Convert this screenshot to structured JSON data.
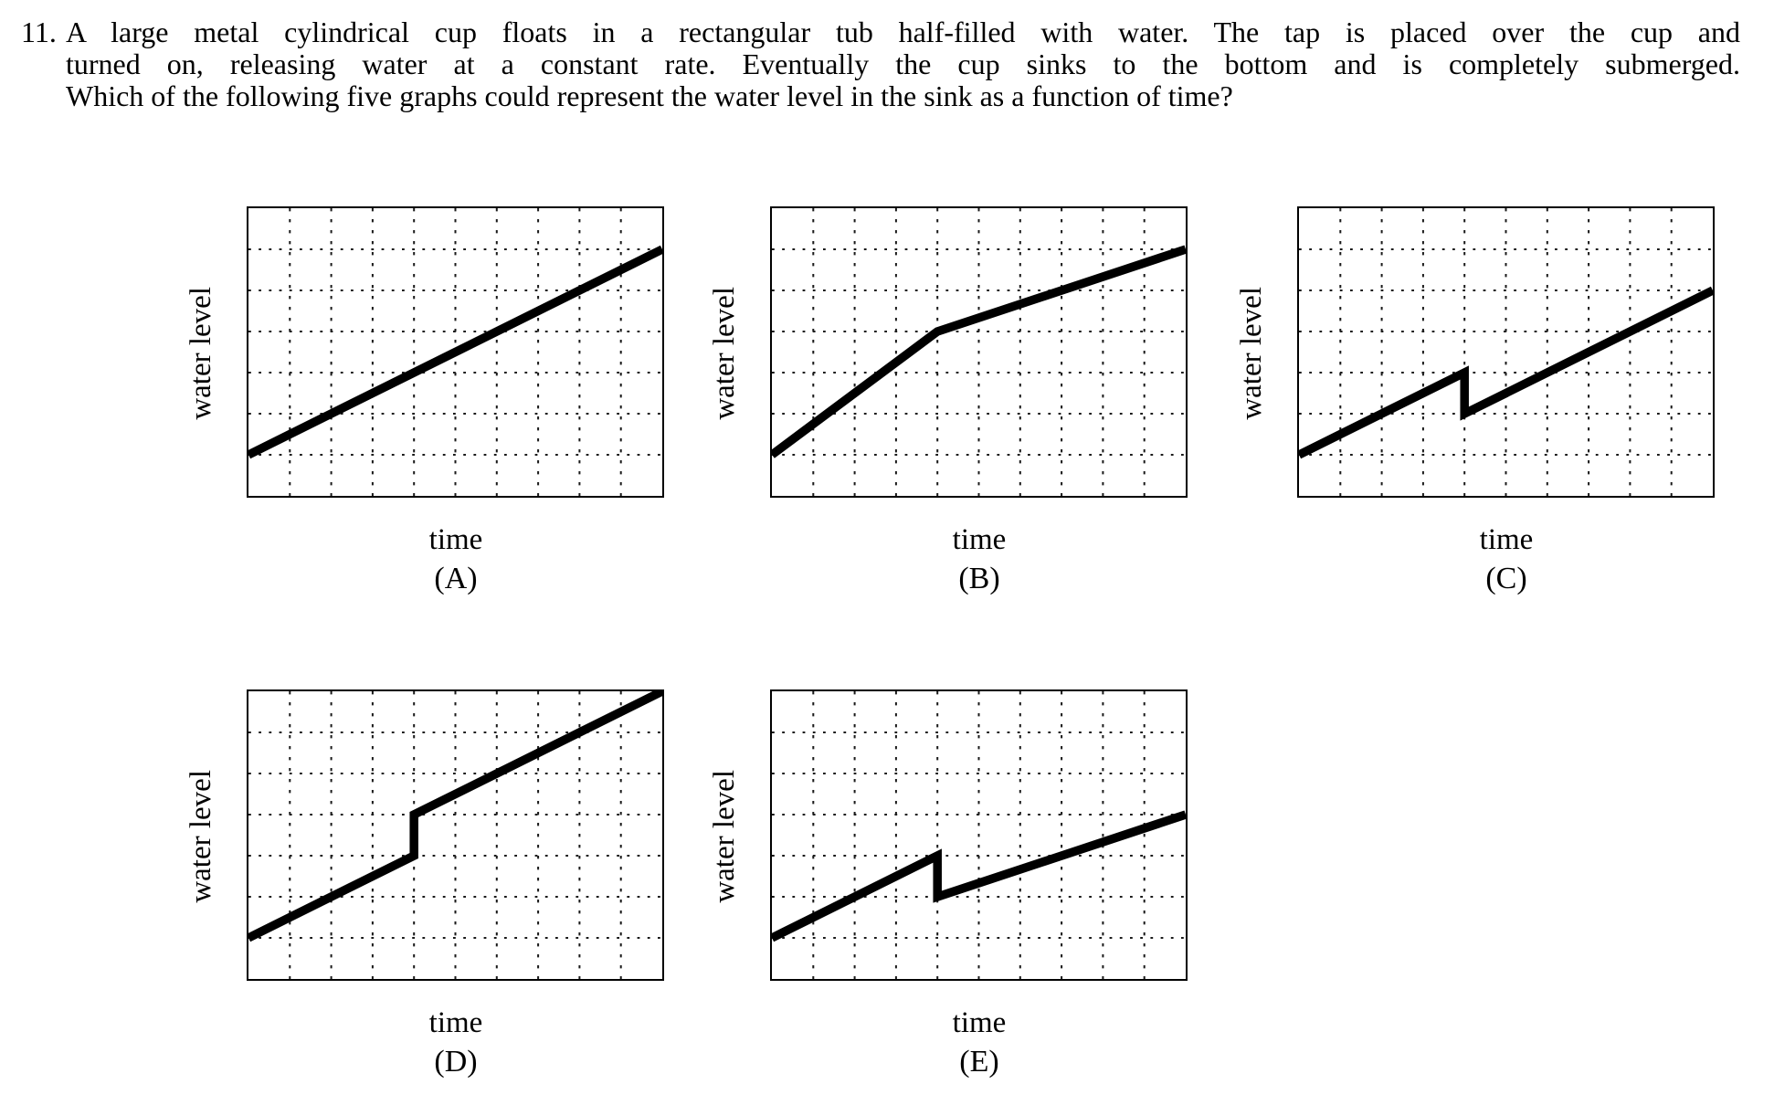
{
  "question": {
    "number": "11.",
    "lines": [
      "A large metal cylindrical cup floats in a rectangular tub half-filled with water. The tap is placed over the cup and",
      "turned on, releasing water at a constant rate. Eventually the cup sinks to the bottom and is completely submerged.",
      "Which of the following five graphs could represent the water level in the sink as a function of time?"
    ]
  },
  "colors": {
    "background": "#ffffff",
    "text": "#000000",
    "line": "#000000",
    "grid": "#1a1a1a",
    "frame": "#000000"
  },
  "chart_data": [
    {
      "type": "line",
      "label": "(A)",
      "title": "",
      "xlabel": "time",
      "ylabel": "water level",
      "xlim": [
        0,
        10
      ],
      "ylim": [
        0,
        7
      ],
      "grid": true,
      "grid_divisions_x": 10,
      "grid_divisions_y": 7,
      "tick_labels": "none (qualitative axes)",
      "points": [
        [
          0,
          1
        ],
        [
          10,
          6
        ]
      ],
      "description": "single straight line rising at a constant rate from lower-left to upper-right"
    },
    {
      "type": "line",
      "label": "(B)",
      "title": "",
      "xlabel": "time",
      "ylabel": "water level",
      "xlim": [
        0,
        10
      ],
      "ylim": [
        0,
        7
      ],
      "grid": true,
      "grid_divisions_x": 10,
      "grid_divisions_y": 7,
      "tick_labels": "none (qualitative axes)",
      "points": [
        [
          0,
          1
        ],
        [
          4,
          4
        ],
        [
          10,
          6
        ]
      ],
      "description": "steep linear rise, then a kink to a shallower linear rise (no discontinuity)"
    },
    {
      "type": "line",
      "label": "(C)",
      "title": "",
      "xlabel": "time",
      "ylabel": "water level",
      "xlim": [
        0,
        10
      ],
      "ylim": [
        0,
        7
      ],
      "grid": true,
      "grid_divisions_x": 10,
      "grid_divisions_y": 7,
      "tick_labels": "none (qualitative axes)",
      "points": [
        [
          0,
          1
        ],
        [
          4,
          3
        ],
        [
          4,
          2
        ],
        [
          10,
          5
        ]
      ],
      "description": "linear rise, sudden vertical drop of one grid unit, then linear rise at the same rate"
    },
    {
      "type": "line",
      "label": "(D)",
      "title": "",
      "xlabel": "time",
      "ylabel": "water level",
      "xlim": [
        0,
        10
      ],
      "ylim": [
        0,
        7
      ],
      "grid": true,
      "grid_divisions_x": 10,
      "grid_divisions_y": 7,
      "tick_labels": "none (qualitative axes)",
      "points": [
        [
          0,
          1
        ],
        [
          4,
          3
        ],
        [
          4,
          4
        ],
        [
          10,
          7
        ]
      ],
      "description": "linear rise, sudden vertical jump up of one grid unit, then linear rise at the same rate ending at the top-right corner"
    },
    {
      "type": "line",
      "label": "(E)",
      "title": "",
      "xlabel": "time",
      "ylabel": "water level",
      "xlim": [
        0,
        10
      ],
      "ylim": [
        0,
        7
      ],
      "grid": true,
      "grid_divisions_x": 10,
      "grid_divisions_y": 7,
      "tick_labels": "none (qualitative axes)",
      "points": [
        [
          0,
          1
        ],
        [
          4,
          3
        ],
        [
          4,
          2
        ],
        [
          10,
          4
        ]
      ],
      "description": "linear rise, sudden vertical drop of one grid unit, then linear rise at a shallower rate"
    }
  ]
}
